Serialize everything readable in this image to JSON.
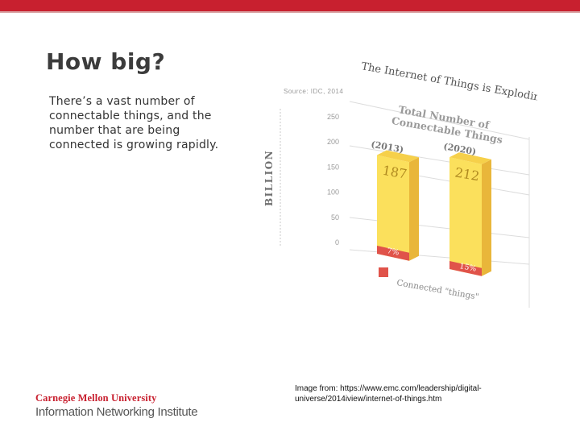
{
  "theme": {
    "accent": "#c8202f",
    "accent_line": "#d9a3a3",
    "bar_front": "#fbe05c",
    "bar_side": "#e9b63a",
    "pct_red": "#e0534a"
  },
  "slide": {
    "title": "How big?",
    "body": "There’s a vast number of connectable things, and the number that are being connected is growing rapidly.",
    "credit": "Image from: https://www.emc.com/leadership/digital-universe/2014iview/internet-of-things.htm"
  },
  "logo": {
    "line1": "Carnegie Mellon University",
    "line2": "Information Networking Institute"
  },
  "chart_data": {
    "type": "bar",
    "title": "The Internet of Things is Exploding",
    "subtitle": "Total Number of Connectable Things",
    "source": "Source: IDC, 2014",
    "ylabel": "BILLION",
    "ylim": [
      0,
      250
    ],
    "yticks": [
      0,
      50,
      100,
      150,
      200,
      250
    ],
    "categories": [
      "(2013)",
      "(2020)"
    ],
    "values": [
      187,
      212
    ],
    "connected_percent": [
      "7%",
      "15%"
    ],
    "legend": "Connected \"things\""
  }
}
